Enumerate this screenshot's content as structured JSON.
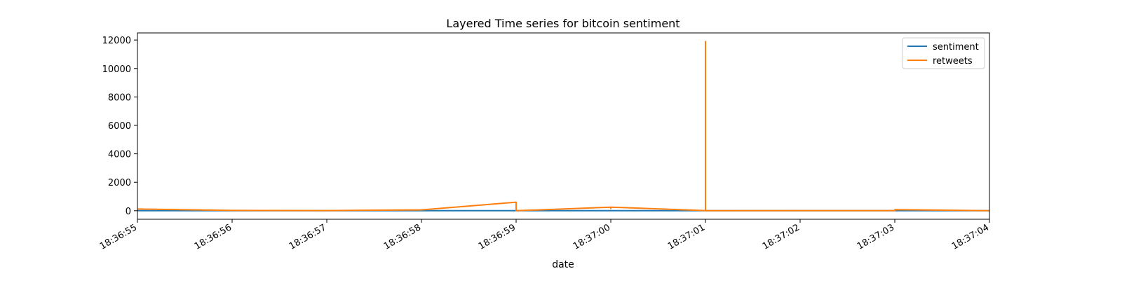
{
  "chart_data": {
    "type": "line",
    "title": "Layered Time series for bitcoin sentiment",
    "xlabel": "date",
    "ylabel": "",
    "x_ticks": [
      "18:36:55",
      "18:36:56",
      "18:36:57",
      "18:36:58",
      "18:36:59",
      "18:37:00",
      "18:37:01",
      "18:37:02",
      "18:37:03",
      "18:37:04"
    ],
    "y_ticks": [
      "0",
      "2000",
      "4000",
      "6000",
      "8000",
      "10000",
      "12000"
    ],
    "xlim": [
      "18:36:55",
      "18:37:04"
    ],
    "ylim": [
      -600,
      12500
    ],
    "grid": false,
    "legend_position": "top-right",
    "series": [
      {
        "name": "sentiment",
        "color": "#1f77b4",
        "points": [
          [
            "18:36:55",
            0
          ],
          [
            "18:36:56",
            0
          ],
          [
            "18:36:57",
            0
          ],
          [
            "18:36:58",
            0
          ],
          [
            "18:36:59",
            0
          ],
          [
            "18:37:00",
            0
          ],
          [
            "18:37:01",
            0
          ],
          [
            "18:37:02",
            0
          ],
          [
            "18:37:03",
            0
          ],
          [
            "18:37:04",
            0
          ]
        ]
      },
      {
        "name": "retweets",
        "color": "#ff7f0e",
        "points": [
          [
            "18:36:55",
            120
          ],
          [
            "18:36:56",
            20
          ],
          [
            "18:36:57",
            10
          ],
          [
            "18:36:58",
            60
          ],
          [
            "18:36:59",
            600
          ],
          [
            "18:36:59",
            0
          ],
          [
            "18:37:00",
            250
          ],
          [
            "18:37:00",
            150
          ],
          [
            "18:37:00",
            250
          ],
          [
            "18:37:01",
            10
          ],
          [
            "18:37:01",
            11900
          ],
          [
            "18:37:01",
            0
          ],
          [
            "18:37:02",
            10
          ],
          [
            "18:37:03",
            10
          ],
          [
            "18:37:03",
            80
          ],
          [
            "18:37:04",
            0
          ]
        ]
      }
    ]
  }
}
